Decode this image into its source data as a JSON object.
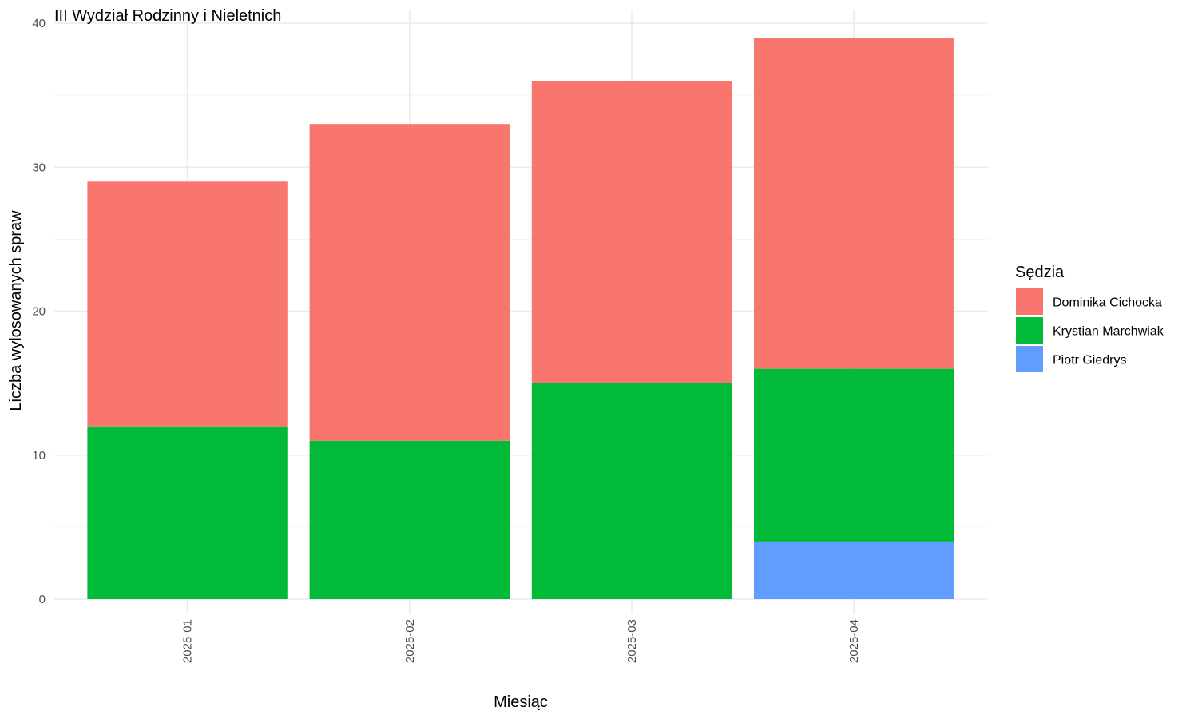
{
  "chart_data": {
    "type": "bar",
    "stacked": true,
    "title": "III Wydział Rodzinny i Nieletnich",
    "xlabel": "Miesiąc",
    "ylabel": "Liczba wylosowanych spraw",
    "categories": [
      "2025-01",
      "2025-02",
      "2025-03",
      "2025-04"
    ],
    "ylim": [
      0,
      40
    ],
    "yticks": [
      0,
      10,
      20,
      30,
      40
    ],
    "grid": true,
    "legend": {
      "title": "Sędzia",
      "position": "right"
    },
    "series": [
      {
        "name": "Dominika Cichocka",
        "color": "#F8766D",
        "values": [
          17,
          22,
          21,
          23
        ]
      },
      {
        "name": "Krystian Marchwiak",
        "color": "#00BA38",
        "values": [
          12,
          11,
          15,
          12
        ]
      },
      {
        "name": "Piotr Giedrys",
        "color": "#619CFF",
        "values": [
          0,
          0,
          0,
          4
        ]
      }
    ]
  }
}
